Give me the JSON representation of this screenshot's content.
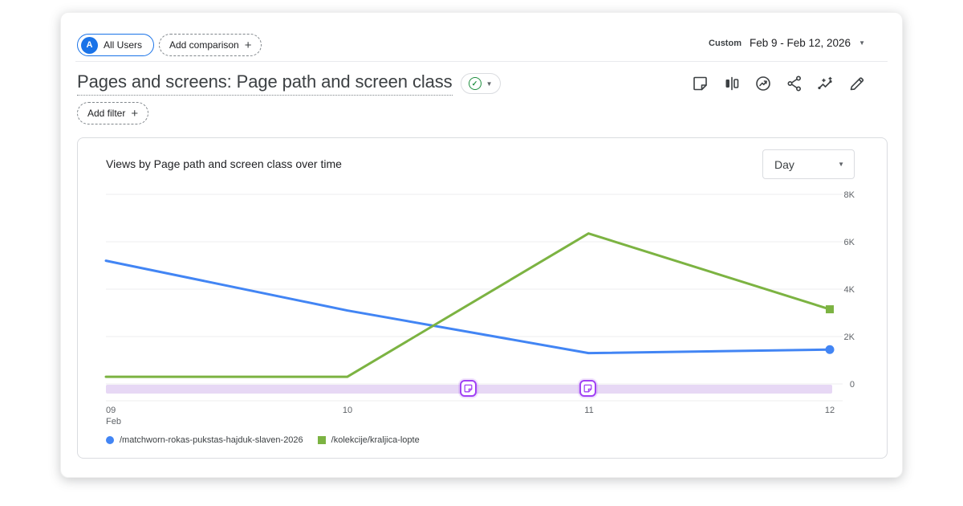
{
  "header": {
    "audience_chip": {
      "avatar": "A",
      "label": "All Users"
    },
    "add_comparison_label": "Add comparison",
    "date_range": {
      "type_label": "Custom",
      "value": "Feb 9 - Feb 12, 2026"
    }
  },
  "report": {
    "title": "Pages and screens: Page path and screen class",
    "add_filter_label": "Add filter"
  },
  "chart_card": {
    "title": "Views by Page path and screen class over time",
    "granularity": "Day"
  },
  "chart_data": {
    "type": "line",
    "title": "Views by Page path and screen class over time",
    "categories": [
      "Feb 9",
      "Feb 10",
      "Feb 11",
      "Feb 12"
    ],
    "x_ticks": [
      {
        "line1": "09",
        "line2": "Feb"
      },
      {
        "line1": "10"
      },
      {
        "line1": "11"
      },
      {
        "line1": "12"
      }
    ],
    "series": [
      {
        "name": "/matchworn-rokas-pukstas-hajduk-slaven-2026",
        "color": "#4285f4",
        "marker": "circle",
        "values": [
          5200,
          3100,
          1300,
          1450
        ]
      },
      {
        "name": "/kolekcije/kraljica-lopte",
        "color": "#7cb342",
        "marker": "square",
        "values": [
          300,
          300,
          6350,
          3150
        ]
      }
    ],
    "ylim": [
      0,
      8000
    ],
    "y_ticks": [
      {
        "label": "8K",
        "value": 8000
      },
      {
        "label": "6K",
        "value": 6000
      },
      {
        "label": "4K",
        "value": 4000
      },
      {
        "label": "2K",
        "value": 2000
      },
      {
        "label": "0",
        "value": 0
      }
    ],
    "grid": "horizontal",
    "legend_position": "bottom",
    "annotations": {
      "band_color": "#e7d8f5",
      "markers": [
        {
          "pos": 0.5
        },
        {
          "pos": 0.665
        }
      ]
    }
  },
  "colors": {
    "accent_blue": "#1a73e8",
    "series_blue": "#4285f4",
    "series_green": "#7cb342",
    "annotation_purple": "#a142f4",
    "check_green": "#1e8e3e",
    "grid": "#ededef",
    "axis_text": "#5f6368"
  }
}
